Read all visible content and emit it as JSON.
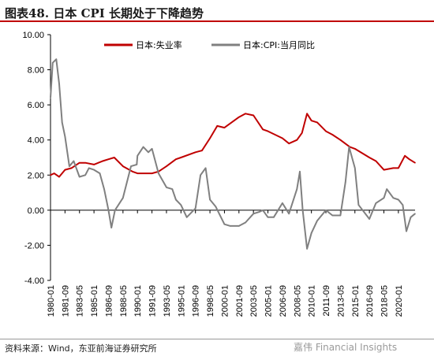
{
  "header": {
    "figure_number": "图表48.",
    "title": "日本 CPI 长期处于下降趋势"
  },
  "footer": {
    "source": "资料来源：Wind，东亚前海证券研究所",
    "watermark": "嘉伟 Financial Insights"
  },
  "colors": {
    "unemployment": "#c00000",
    "cpi": "#808080",
    "title_rule": "#c00000"
  },
  "chart_data": {
    "type": "line",
    "xlabel": "",
    "ylabel": "",
    "ylim": [
      -4,
      10
    ],
    "yticks": [
      "10.00",
      "8.00",
      "6.00",
      "4.00",
      "2.00",
      "0.00",
      "-2.00",
      "-4.00"
    ],
    "ytick_values": [
      10,
      8,
      6,
      4,
      2,
      0,
      -2,
      -4
    ],
    "xticks": [
      "1980-01",
      "1981-09",
      "1983-05",
      "1985-01",
      "1986-09",
      "1988-05",
      "1990-01",
      "1991-09",
      "1993-05",
      "1995-01",
      "1996-09",
      "1998-05",
      "2000-01",
      "2001-09",
      "2003-05",
      "2005-01",
      "2006-09",
      "2008-05",
      "2010-01",
      "2011-09",
      "2013-05",
      "2015-01",
      "2016-09",
      "2018-05",
      "2020-01"
    ],
    "x_start": "1980-01",
    "x_end": "2021-12",
    "legend_position": "top",
    "grid": false,
    "series": [
      {
        "name": "日本:失业率",
        "color": "#c00000",
        "points": [
          [
            "1980-01",
            2.0
          ],
          [
            "1980-06",
            2.1
          ],
          [
            "1981-01",
            1.9
          ],
          [
            "1981-09",
            2.3
          ],
          [
            "1982-06",
            2.4
          ],
          [
            "1983-05",
            2.7
          ],
          [
            "1984-01",
            2.7
          ],
          [
            "1985-01",
            2.6
          ],
          [
            "1986-01",
            2.8
          ],
          [
            "1986-09",
            2.9
          ],
          [
            "1987-05",
            3.0
          ],
          [
            "1988-05",
            2.5
          ],
          [
            "1989-06",
            2.2
          ],
          [
            "1990-01",
            2.1
          ],
          [
            "1991-09",
            2.1
          ],
          [
            "1992-06",
            2.2
          ],
          [
            "1993-05",
            2.5
          ],
          [
            "1994-06",
            2.9
          ],
          [
            "1995-01",
            3.0
          ],
          [
            "1996-09",
            3.3
          ],
          [
            "1997-06",
            3.4
          ],
          [
            "1998-05",
            4.1
          ],
          [
            "1999-03",
            4.8
          ],
          [
            "2000-01",
            4.7
          ],
          [
            "2001-09",
            5.3
          ],
          [
            "2002-06",
            5.5
          ],
          [
            "2003-05",
            5.4
          ],
          [
            "2004-06",
            4.6
          ],
          [
            "2005-01",
            4.5
          ],
          [
            "2006-09",
            4.1
          ],
          [
            "2007-06",
            3.8
          ],
          [
            "2008-05",
            4.0
          ],
          [
            "2008-12",
            4.4
          ],
          [
            "2009-07",
            5.5
          ],
          [
            "2010-01",
            5.1
          ],
          [
            "2010-09",
            5.0
          ],
          [
            "2011-09",
            4.5
          ],
          [
            "2012-06",
            4.3
          ],
          [
            "2013-05",
            4.0
          ],
          [
            "2014-06",
            3.6
          ],
          [
            "2015-01",
            3.5
          ],
          [
            "2016-09",
            3.0
          ],
          [
            "2017-06",
            2.8
          ],
          [
            "2018-05",
            2.3
          ],
          [
            "2019-06",
            2.4
          ],
          [
            "2020-01",
            2.4
          ],
          [
            "2020-10",
            3.1
          ],
          [
            "2021-04",
            2.9
          ],
          [
            "2021-12",
            2.7
          ]
        ]
      },
      {
        "name": "日本:CPI:当月同比",
        "color": "#808080",
        "points": [
          [
            "1980-01",
            6.4
          ],
          [
            "1980-04",
            8.4
          ],
          [
            "1980-09",
            8.6
          ],
          [
            "1981-01",
            7.2
          ],
          [
            "1981-05",
            5.0
          ],
          [
            "1981-09",
            4.2
          ],
          [
            "1982-03",
            2.5
          ],
          [
            "1982-09",
            2.8
          ],
          [
            "1983-05",
            1.9
          ],
          [
            "1984-01",
            2.0
          ],
          [
            "1984-06",
            2.4
          ],
          [
            "1985-01",
            2.3
          ],
          [
            "1985-09",
            2.1
          ],
          [
            "1986-03",
            1.2
          ],
          [
            "1986-09",
            0.0
          ],
          [
            "1987-01",
            -1.0
          ],
          [
            "1987-06",
            0.0
          ],
          [
            "1988-05",
            0.7
          ],
          [
            "1989-04",
            2.5
          ],
          [
            "1989-12",
            2.6
          ],
          [
            "1990-01",
            3.1
          ],
          [
            "1990-09",
            3.6
          ],
          [
            "1991-04",
            3.3
          ],
          [
            "1991-09",
            3.5
          ],
          [
            "1992-06",
            2.1
          ],
          [
            "1993-05",
            1.3
          ],
          [
            "1994-01",
            1.2
          ],
          [
            "1994-06",
            0.6
          ],
          [
            "1995-01",
            0.3
          ],
          [
            "1995-09",
            -0.4
          ],
          [
            "1996-09",
            0.1
          ],
          [
            "1997-04",
            2.0
          ],
          [
            "1997-11",
            2.4
          ],
          [
            "1998-05",
            0.6
          ],
          [
            "1999-01",
            0.2
          ],
          [
            "2000-01",
            -0.8
          ],
          [
            "2000-09",
            -0.9
          ],
          [
            "2001-09",
            -0.9
          ],
          [
            "2002-06",
            -0.7
          ],
          [
            "2003-05",
            -0.2
          ],
          [
            "2004-01",
            -0.1
          ],
          [
            "2004-06",
            0.0
          ],
          [
            "2005-01",
            -0.4
          ],
          [
            "2005-09",
            -0.4
          ],
          [
            "2006-09",
            0.4
          ],
          [
            "2007-06",
            -0.2
          ],
          [
            "2008-05",
            1.2
          ],
          [
            "2008-09",
            2.2
          ],
          [
            "2009-01",
            0.0
          ],
          [
            "2009-07",
            -2.2
          ],
          [
            "2010-01",
            -1.3
          ],
          [
            "2010-09",
            -0.6
          ],
          [
            "2011-09",
            0.0
          ],
          [
            "2012-06",
            -0.3
          ],
          [
            "2013-05",
            -0.3
          ],
          [
            "2013-12",
            1.6
          ],
          [
            "2014-05",
            3.6
          ],
          [
            "2015-01",
            2.4
          ],
          [
            "2015-06",
            0.3
          ],
          [
            "2016-09",
            -0.5
          ],
          [
            "2017-06",
            0.4
          ],
          [
            "2018-05",
            0.7
          ],
          [
            "2018-09",
            1.2
          ],
          [
            "2019-06",
            0.7
          ],
          [
            "2020-01",
            0.6
          ],
          [
            "2020-07",
            0.3
          ],
          [
            "2020-12",
            -1.2
          ],
          [
            "2021-06",
            -0.4
          ],
          [
            "2021-12",
            -0.2
          ]
        ]
      }
    ]
  }
}
